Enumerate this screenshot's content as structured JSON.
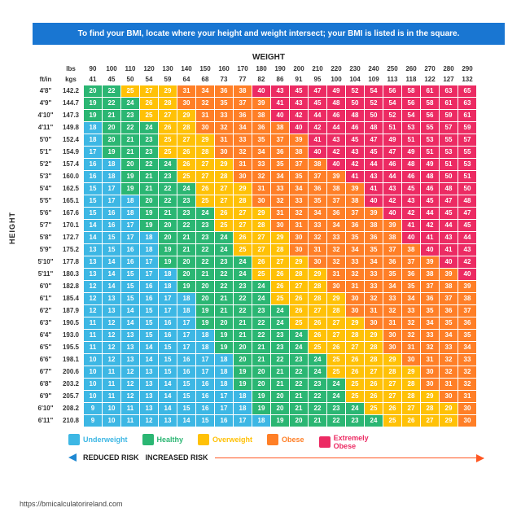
{
  "banner": "To find your BMI, locate where your height and weight intersect; your BMI is listed is in the square.",
  "axis": {
    "weight": "WEIGHT",
    "height": "HEIGHT"
  },
  "headers": {
    "lbs_label": "lbs",
    "kgs_label": "kgs",
    "ftin_label": "ft/in",
    "cm_label": "cm",
    "lbs": [
      90,
      100,
      110,
      120,
      130,
      140,
      150,
      160,
      170,
      180,
      190,
      200,
      210,
      220,
      230,
      240,
      250,
      260,
      270,
      280,
      290
    ],
    "kgs": [
      41,
      45,
      50,
      54,
      59,
      64,
      68,
      73,
      77,
      82,
      86,
      91,
      95,
      100,
      104,
      109,
      113,
      118,
      122,
      127,
      132
    ]
  },
  "rows": [
    {
      "ft": "4'8\"",
      "cm": "142.2",
      "v": [
        20,
        22,
        25,
        27,
        29,
        31,
        34,
        36,
        38,
        40,
        43,
        45,
        47,
        49,
        52,
        54,
        56,
        58,
        61,
        63,
        65
      ]
    },
    {
      "ft": "4'9\"",
      "cm": "144.7",
      "v": [
        19,
        22,
        24,
        26,
        28,
        30,
        32,
        35,
        37,
        39,
        41,
        43,
        45,
        48,
        50,
        52,
        54,
        56,
        58,
        61,
        63
      ]
    },
    {
      "ft": "4'10\"",
      "cm": "147.3",
      "v": [
        19,
        21,
        23,
        25,
        27,
        29,
        31,
        33,
        36,
        38,
        40,
        42,
        44,
        46,
        48,
        50,
        52,
        54,
        56,
        59,
        61
      ]
    },
    {
      "ft": "4'11\"",
      "cm": "149.8",
      "v": [
        18,
        20,
        22,
        24,
        26,
        28,
        30,
        32,
        34,
        36,
        38,
        40,
        42,
        44,
        46,
        48,
        51,
        53,
        55,
        57,
        59
      ]
    },
    {
      "ft": "5'0\"",
      "cm": "152.4",
      "v": [
        18,
        20,
        21,
        23,
        25,
        27,
        29,
        31,
        33,
        35,
        37,
        39,
        41,
        43,
        45,
        47,
        49,
        51,
        53,
        55,
        57
      ]
    },
    {
      "ft": "5'1\"",
      "cm": "154.9",
      "v": [
        17,
        19,
        21,
        23,
        25,
        26,
        28,
        30,
        32,
        34,
        36,
        38,
        40,
        42,
        43,
        45,
        47,
        49,
        51,
        53,
        55
      ]
    },
    {
      "ft": "5'2\"",
      "cm": "157.4",
      "v": [
        16,
        18,
        20,
        22,
        24,
        26,
        27,
        29,
        31,
        33,
        35,
        37,
        38,
        40,
        42,
        44,
        46,
        48,
        49,
        51,
        53
      ]
    },
    {
      "ft": "5'3\"",
      "cm": "160.0",
      "v": [
        16,
        18,
        19,
        21,
        23,
        25,
        27,
        28,
        30,
        32,
        34,
        35,
        37,
        39,
        41,
        43,
        44,
        46,
        48,
        50,
        51
      ]
    },
    {
      "ft": "5'4\"",
      "cm": "162.5",
      "v": [
        15,
        17,
        19,
        21,
        22,
        24,
        26,
        27,
        29,
        31,
        33,
        34,
        36,
        38,
        39,
        41,
        43,
        45,
        46,
        48,
        50
      ]
    },
    {
      "ft": "5'5\"",
      "cm": "165.1",
      "v": [
        15,
        17,
        18,
        20,
        22,
        23,
        25,
        27,
        28,
        30,
        32,
        33,
        35,
        37,
        38,
        40,
        42,
        43,
        45,
        47,
        48
      ]
    },
    {
      "ft": "5'6\"",
      "cm": "167.6",
      "v": [
        15,
        16,
        18,
        19,
        21,
        23,
        24,
        26,
        27,
        29,
        31,
        32,
        34,
        36,
        37,
        39,
        40,
        42,
        44,
        45,
        47
      ]
    },
    {
      "ft": "5'7\"",
      "cm": "170.1",
      "v": [
        14,
        16,
        17,
        19,
        20,
        22,
        23,
        25,
        27,
        28,
        30,
        31,
        33,
        34,
        36,
        38,
        39,
        41,
        42,
        44,
        45
      ]
    },
    {
      "ft": "5'8\"",
      "cm": "172.7",
      "v": [
        14,
        15,
        17,
        18,
        20,
        21,
        23,
        24,
        26,
        27,
        29,
        30,
        32,
        33,
        35,
        36,
        38,
        40,
        41,
        43,
        44
      ]
    },
    {
      "ft": "5'9\"",
      "cm": "175.2",
      "v": [
        13,
        15,
        16,
        18,
        19,
        21,
        22,
        24,
        25,
        27,
        28,
        30,
        31,
        32,
        34,
        35,
        37,
        38,
        40,
        41,
        43
      ]
    },
    {
      "ft": "5'10\"",
      "cm": "177.8",
      "v": [
        13,
        14,
        16,
        17,
        19,
        20,
        22,
        23,
        24,
        26,
        27,
        29,
        30,
        32,
        33,
        34,
        36,
        37,
        39,
        40,
        42
      ]
    },
    {
      "ft": "5'11\"",
      "cm": "180.3",
      "v": [
        13,
        14,
        15,
        17,
        18,
        20,
        21,
        22,
        24,
        25,
        26,
        28,
        29,
        31,
        32,
        33,
        35,
        36,
        38,
        39,
        40
      ]
    },
    {
      "ft": "6'0\"",
      "cm": "182.8",
      "v": [
        12,
        14,
        15,
        16,
        18,
        19,
        20,
        22,
        23,
        24,
        26,
        27,
        28,
        30,
        31,
        33,
        34,
        35,
        37,
        38,
        39
      ]
    },
    {
      "ft": "6'1\"",
      "cm": "185.4",
      "v": [
        12,
        13,
        15,
        16,
        17,
        18,
        20,
        21,
        22,
        24,
        25,
        26,
        28,
        29,
        30,
        32,
        33,
        34,
        36,
        37,
        38
      ]
    },
    {
      "ft": "6'2\"",
      "cm": "187.9",
      "v": [
        12,
        13,
        14,
        15,
        17,
        18,
        19,
        21,
        22,
        23,
        24,
        26,
        27,
        28,
        30,
        31,
        32,
        33,
        35,
        36,
        37
      ]
    },
    {
      "ft": "6'3\"",
      "cm": "190.5",
      "v": [
        11,
        12,
        14,
        15,
        16,
        17,
        19,
        20,
        21,
        22,
        24,
        25,
        26,
        27,
        29,
        30,
        31,
        32,
        34,
        35,
        36
      ]
    },
    {
      "ft": "6'4\"",
      "cm": "193.0",
      "v": [
        11,
        12,
        13,
        15,
        16,
        17,
        18,
        19,
        21,
        22,
        23,
        24,
        26,
        27,
        28,
        29,
        30,
        32,
        33,
        34,
        35
      ]
    },
    {
      "ft": "6'5\"",
      "cm": "195.5",
      "v": [
        11,
        12,
        13,
        14,
        15,
        17,
        18,
        19,
        20,
        21,
        23,
        24,
        25,
        26,
        27,
        28,
        30,
        31,
        32,
        33,
        34
      ]
    },
    {
      "ft": "6'6\"",
      "cm": "198.1",
      "v": [
        10,
        12,
        13,
        14,
        15,
        16,
        17,
        18,
        20,
        21,
        22,
        23,
        24,
        25,
        26,
        28,
        29,
        30,
        31,
        32,
        33
      ]
    },
    {
      "ft": "6'7\"",
      "cm": "200.6",
      "v": [
        10,
        11,
        12,
        13,
        15,
        16,
        17,
        18,
        19,
        20,
        21,
        22,
        24,
        25,
        26,
        27,
        28,
        29,
        30,
        32,
        32
      ]
    },
    {
      "ft": "6'8\"",
      "cm": "203.2",
      "v": [
        10,
        11,
        12,
        13,
        14,
        15,
        16,
        18,
        19,
        20,
        21,
        22,
        23,
        24,
        25,
        26,
        27,
        28,
        30,
        31,
        32
      ]
    },
    {
      "ft": "6'9\"",
      "cm": "205.7",
      "v": [
        10,
        11,
        12,
        13,
        14,
        15,
        16,
        17,
        18,
        19,
        20,
        21,
        22,
        24,
        25,
        26,
        27,
        28,
        29,
        30,
        31
      ]
    },
    {
      "ft": "6'10\"",
      "cm": "208.2",
      "v": [
        9,
        10,
        11,
        13,
        14,
        15,
        16,
        17,
        18,
        19,
        20,
        21,
        22,
        23,
        24,
        25,
        26,
        27,
        28,
        29,
        30
      ]
    },
    {
      "ft": "6'11\"",
      "cm": "210.8",
      "v": [
        9,
        10,
        11,
        12,
        13,
        14,
        15,
        16,
        17,
        18,
        19,
        20,
        21,
        22,
        23,
        24,
        25,
        26,
        27,
        29,
        30
      ]
    }
  ],
  "categories": {
    "underweight": {
      "label": "Underweight",
      "color": "#3db7e4",
      "max": 18.49
    },
    "healthy": {
      "label": "Healthy",
      "color": "#2bb673",
      "max": 24.49
    },
    "overweight": {
      "label": "Overweight",
      "color": "#ffc107",
      "max": 29.49
    },
    "obese": {
      "label": "Obese",
      "color": "#ff7f27",
      "max": 39.49
    },
    "extreme": {
      "label": "Extremely Obese",
      "color": "#ec2b63",
      "max": 999
    }
  },
  "risk": {
    "reduced": "REDUCED RISK",
    "increased": "INCREASED RISK"
  },
  "source": "https://bmicalculatorireland.com"
}
